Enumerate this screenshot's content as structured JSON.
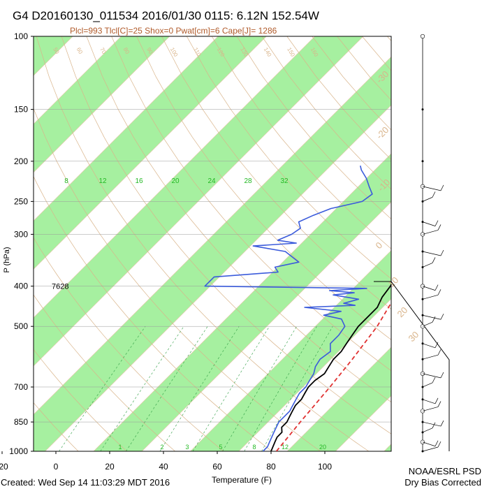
{
  "title": "G4 D20160130_011534 2016/01/30 0115:  6.12N 152.54W",
  "subtitle": "Plcl=993 Tlcl[C]=25 Shox=0 Pwat[cm]=6 Cape[J]= 1286",
  "footer": {
    "created": "Created: Wed Sep 14 11:03:29 MDT 2016",
    "org": "NOAA/ESRL PSD",
    "note": "Dry Bias Corrected"
  },
  "chart_data": {
    "type": "skew-T log-P sounding",
    "xlabel": "Temperature (F)",
    "ylabel": "P (hPa)",
    "x_ticks": [
      "-20",
      "0",
      "20",
      "40",
      "60",
      "80",
      "100"
    ],
    "x_tick_values": [
      -20,
      0,
      20,
      40,
      60,
      80,
      100
    ],
    "xlim": [
      -30,
      110
    ],
    "ylim": [
      1000,
      100
    ],
    "y_ticks": [
      "100",
      "150",
      "200",
      "250",
      "300",
      "400",
      "500",
      "700",
      "850",
      "1000"
    ],
    "y_tick_values": [
      100,
      150,
      200,
      250,
      300,
      400,
      500,
      700,
      850,
      1000
    ],
    "mixing_ratio_labels": [
      "8",
      "12",
      "16",
      "20",
      "24",
      "28",
      "32"
    ],
    "mixing_ratio_label_values": [
      8,
      12,
      16,
      20,
      24,
      28,
      32
    ],
    "mixing_ratio_bottom_labels": [
      "1",
      "2",
      "3",
      "5",
      "8",
      "12",
      "20"
    ],
    "isotherm_labels_right": [
      "-30",
      "-20",
      "-10",
      "0",
      "10",
      "20",
      "30"
    ],
    "theta_labels_top": [
      "50",
      "60",
      "70",
      "80",
      "90",
      "100",
      "110",
      "120",
      "130",
      "140",
      "150",
      "160"
    ],
    "annotation": "7628",
    "series": [
      {
        "kind": "temperature",
        "color": "#000000",
        "points": [
          [
            1000,
            80
          ],
          [
            975,
            79
          ],
          [
            950,
            78
          ],
          [
            925,
            77
          ],
          [
            900,
            77
          ],
          [
            875,
            75
          ],
          [
            850,
            75
          ],
          [
            825,
            74
          ],
          [
            800,
            73
          ],
          [
            775,
            72
          ],
          [
            750,
            72
          ],
          [
            725,
            71
          ],
          [
            700,
            70
          ],
          [
            675,
            70
          ],
          [
            650,
            71
          ],
          [
            625,
            70
          ],
          [
            600,
            69
          ],
          [
            575,
            69
          ],
          [
            550,
            68
          ],
          [
            525,
            67
          ],
          [
            500,
            66
          ],
          [
            475,
            66
          ],
          [
            450,
            66
          ],
          [
            425,
            64
          ],
          [
            400,
            63
          ],
          [
            375,
            61
          ],
          [
            350,
            58
          ],
          [
            325,
            55
          ],
          [
            300,
            51
          ],
          [
            275,
            46
          ],
          [
            250,
            42
          ],
          [
            225,
            37
          ],
          [
            200,
            31
          ],
          [
            185,
            27
          ]
        ]
      },
      {
        "kind": "dewpoint",
        "color": "#3b5bdb",
        "points": [
          [
            1000,
            77
          ],
          [
            975,
            77
          ],
          [
            950,
            76
          ],
          [
            925,
            75
          ],
          [
            900,
            74
          ],
          [
            875,
            73
          ],
          [
            850,
            72
          ],
          [
            825,
            72
          ],
          [
            800,
            72
          ],
          [
            775,
            71
          ],
          [
            750,
            70
          ],
          [
            725,
            69
          ],
          [
            700,
            69
          ],
          [
            675,
            68
          ],
          [
            650,
            67
          ],
          [
            625,
            65
          ],
          [
            600,
            64
          ],
          [
            575,
            65
          ],
          [
            550,
            62
          ],
          [
            525,
            62
          ],
          [
            500,
            61
          ],
          [
            480,
            57
          ],
          [
            470,
            49
          ],
          [
            460,
            54
          ],
          [
            450,
            39
          ],
          [
            445,
            57
          ],
          [
            440,
            52
          ],
          [
            430,
            56
          ],
          [
            420,
            45
          ],
          [
            415,
            52
          ],
          [
            410,
            42
          ],
          [
            405,
            55
          ],
          [
            400,
            -6
          ],
          [
            380,
            -6
          ],
          [
            370,
            16
          ],
          [
            360,
            13
          ],
          [
            350,
            20
          ],
          [
            330,
            11
          ],
          [
            320,
            -3
          ],
          [
            315,
            12
          ],
          [
            310,
            4
          ],
          [
            300,
            7
          ],
          [
            290,
            8
          ],
          [
            280,
            5
          ],
          [
            270,
            8
          ],
          [
            260,
            12
          ],
          [
            250,
            21
          ],
          [
            240,
            22
          ],
          [
            230,
            18
          ],
          [
            220,
            14
          ],
          [
            210,
            9
          ],
          [
            205,
            7
          ]
        ]
      },
      {
        "kind": "parcel",
        "color": "#e03131",
        "points": [
          [
            1000,
            82
          ],
          [
            850,
            80
          ],
          [
            700,
            78
          ],
          [
            600,
            76
          ],
          [
            500,
            73
          ],
          [
            400,
            67
          ],
          [
            350,
            63
          ],
          [
            300,
            58
          ],
          [
            250,
            51
          ],
          [
            200,
            42
          ],
          [
            180,
            37
          ]
        ]
      }
    ]
  }
}
